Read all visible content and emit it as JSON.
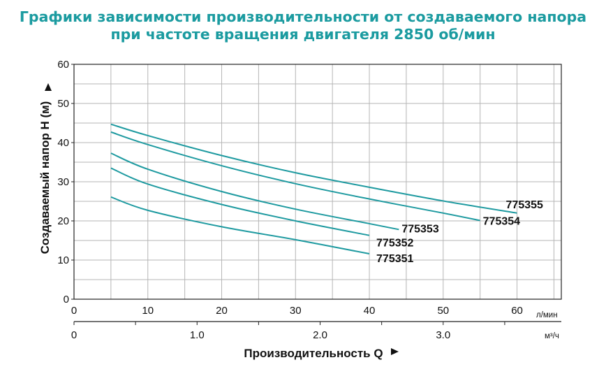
{
  "title_line1": "Графики зависимости производительности от создаваемого напора",
  "title_line2": "при частоте вращения двигателя 2850 об/мин",
  "colors": {
    "title": "#1b9ba0",
    "curve": "#1e9aa0",
    "grid": "#b5b5b5"
  },
  "chart_data": {
    "type": "line",
    "xlabel": "Производительность Q",
    "ylabel": "Создаваемый напор H (м)",
    "x_unit": "л/мин",
    "x2_unit": "м³/ч",
    "xlim": [
      0,
      66
    ],
    "ylim": [
      0,
      60
    ],
    "x_ticks": [
      0,
      10,
      20,
      30,
      40,
      50,
      60
    ],
    "y_ticks": [
      0,
      10,
      20,
      30,
      40,
      50,
      60
    ],
    "x2_ticks": [
      "0",
      "1.0",
      "2.0",
      "3.0"
    ],
    "x2_tick_values": [
      0,
      1.0,
      2.0,
      3.0
    ],
    "grid": true,
    "series": [
      {
        "name": "775351",
        "x": [
          5,
          10,
          20,
          30,
          40
        ],
        "y": [
          26.1,
          22.7,
          18.5,
          15.2,
          11.6
        ]
      },
      {
        "name": "775352",
        "x": [
          5,
          10,
          20,
          30,
          40
        ],
        "y": [
          33.5,
          29.4,
          24.2,
          20.0,
          16.3
        ]
      },
      {
        "name": "775353",
        "x": [
          5,
          10,
          20,
          30,
          40,
          44
        ],
        "y": [
          37.3,
          33.2,
          27.5,
          23.0,
          19.3,
          17.8
        ]
      },
      {
        "name": "775354",
        "x": [
          5,
          10,
          20,
          30,
          40,
          50,
          55
        ],
        "y": [
          42.7,
          39.5,
          34.1,
          29.5,
          25.6,
          22.0,
          20.1
        ]
      },
      {
        "name": "775355",
        "x": [
          5,
          10,
          20,
          30,
          40,
          50,
          60
        ],
        "y": [
          44.7,
          41.8,
          36.7,
          32.3,
          28.6,
          25.1,
          22.0
        ]
      }
    ]
  }
}
